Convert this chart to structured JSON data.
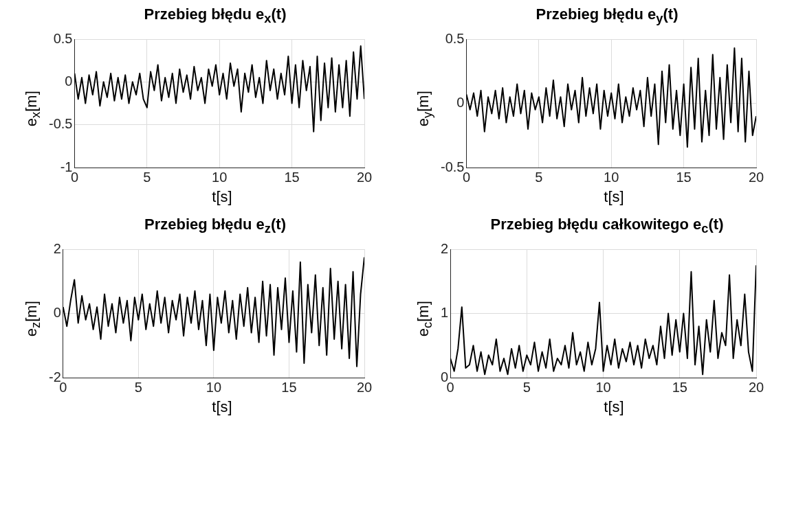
{
  "chart_data": [
    {
      "type": "line",
      "title": "Przebieg błędu e$_{x}$(t)",
      "xlabel": "t[s]",
      "ylabel": "e$_{x}$[m]",
      "xlim": [
        0,
        20
      ],
      "xticks": [
        0,
        5,
        10,
        15,
        20
      ],
      "ylim": [
        -1,
        0.5
      ],
      "yticks": [
        -1,
        -0.5,
        0,
        0.5
      ],
      "grid": true,
      "x": [
        0,
        0.25,
        0.5,
        0.75,
        1,
        1.25,
        1.5,
        1.75,
        2,
        2.25,
        2.5,
        2.75,
        3,
        3.25,
        3.5,
        3.75,
        4,
        4.25,
        4.5,
        4.75,
        5,
        5.25,
        5.5,
        5.75,
        6,
        6.25,
        6.5,
        6.75,
        7,
        7.25,
        7.5,
        7.75,
        8,
        8.25,
        8.5,
        8.75,
        9,
        9.25,
        9.5,
        9.75,
        10,
        10.25,
        10.5,
        10.75,
        11,
        11.25,
        11.5,
        11.75,
        12,
        12.25,
        12.5,
        12.75,
        13,
        13.25,
        13.5,
        13.75,
        14,
        14.25,
        14.5,
        14.75,
        15,
        15.25,
        15.5,
        15.75,
        16,
        16.25,
        16.5,
        16.75,
        17,
        17.25,
        17.5,
        17.75,
        18,
        18.25,
        18.5,
        18.75,
        19,
        19.25,
        19.5,
        19.75,
        20
      ],
      "series": [
        {
          "color": "#000000",
          "values": [
            0.1,
            -0.2,
            0.05,
            -0.25,
            0.08,
            -0.15,
            0.12,
            -0.28,
            0.0,
            -0.18,
            0.1,
            -0.22,
            0.05,
            -0.2,
            0.08,
            -0.25,
            0.0,
            -0.15,
            0.1,
            -0.2,
            -0.3,
            0.12,
            -0.1,
            0.2,
            -0.22,
            0.05,
            -0.18,
            0.1,
            -0.25,
            0.15,
            -0.12,
            0.08,
            -0.2,
            0.18,
            -0.1,
            0.05,
            -0.25,
            0.15,
            -0.05,
            0.2,
            -0.15,
            0.1,
            -0.2,
            0.22,
            -0.05,
            0.15,
            -0.35,
            0.1,
            -0.12,
            0.2,
            -0.18,
            0.05,
            -0.25,
            0.25,
            -0.1,
            0.15,
            -0.2,
            0.1,
            -0.15,
            0.3,
            -0.25,
            0.2,
            -0.3,
            0.25,
            -0.1,
            0.18,
            -0.58,
            0.3,
            -0.45,
            0.22,
            -0.3,
            0.28,
            -0.35,
            0.2,
            -0.3,
            0.25,
            -0.4,
            0.35,
            -0.2,
            0.42,
            -0.2
          ]
        }
      ]
    },
    {
      "type": "line",
      "title": "Przebieg błędu e$_{y}$(t)",
      "xlabel": "t[s]",
      "ylabel": "e$_{y}$[m]",
      "xlim": [
        0,
        20
      ],
      "xticks": [
        0,
        5,
        10,
        15,
        20
      ],
      "ylim": [
        -0.5,
        0.5
      ],
      "yticks": [
        -0.5,
        0,
        0.5
      ],
      "grid": true,
      "x": [
        0,
        0.25,
        0.5,
        0.75,
        1,
        1.25,
        1.5,
        1.75,
        2,
        2.25,
        2.5,
        2.75,
        3,
        3.25,
        3.5,
        3.75,
        4,
        4.25,
        4.5,
        4.75,
        5,
        5.25,
        5.5,
        5.75,
        6,
        6.25,
        6.5,
        6.75,
        7,
        7.25,
        7.5,
        7.75,
        8,
        8.25,
        8.5,
        8.75,
        9,
        9.25,
        9.5,
        9.75,
        10,
        10.25,
        10.5,
        10.75,
        11,
        11.25,
        11.5,
        11.75,
        12,
        12.25,
        12.5,
        12.75,
        13,
        13.25,
        13.5,
        13.75,
        14,
        14.25,
        14.5,
        14.75,
        15,
        15.25,
        15.5,
        15.75,
        16,
        16.25,
        16.5,
        16.75,
        17,
        17.25,
        17.5,
        17.75,
        18,
        18.25,
        18.5,
        18.75,
        19,
        19.25,
        19.5,
        19.75,
        20
      ],
      "series": [
        {
          "color": "#000000",
          "values": [
            0.07,
            -0.05,
            0.08,
            -0.1,
            0.1,
            -0.22,
            0.05,
            -0.08,
            0.1,
            -0.12,
            0.12,
            -0.15,
            0.05,
            -0.1,
            0.15,
            -0.08,
            0.1,
            -0.2,
            0.08,
            -0.05,
            0.05,
            -0.15,
            0.12,
            -0.1,
            0.18,
            -0.12,
            0.05,
            -0.18,
            0.15,
            -0.05,
            0.1,
            -0.15,
            0.2,
            -0.1,
            0.12,
            -0.08,
            0.15,
            -0.2,
            0.1,
            -0.1,
            0.08,
            -0.12,
            0.15,
            -0.15,
            0.05,
            -0.1,
            0.12,
            -0.05,
            0.1,
            -0.18,
            0.2,
            -0.1,
            0.15,
            -0.32,
            0.25,
            -0.15,
            0.3,
            -0.2,
            0.1,
            -0.25,
            0.15,
            -0.34,
            0.28,
            -0.2,
            0.35,
            -0.3,
            0.1,
            -0.25,
            0.38,
            -0.2,
            0.2,
            -0.28,
            0.3,
            -0.15,
            0.43,
            -0.22,
            0.35,
            -0.3,
            0.25,
            -0.25,
            -0.1
          ]
        }
      ]
    },
    {
      "type": "line",
      "title": "Przebieg błędu e$_{z}$(t)",
      "xlabel": "t[s]",
      "ylabel": "e$_{z}$[m]",
      "xlim": [
        0,
        20
      ],
      "xticks": [
        0,
        5,
        10,
        15,
        20
      ],
      "ylim": [
        -2,
        2
      ],
      "yticks": [
        -2,
        0,
        2
      ],
      "grid": true,
      "x": [
        0,
        0.25,
        0.5,
        0.75,
        1,
        1.25,
        1.5,
        1.75,
        2,
        2.25,
        2.5,
        2.75,
        3,
        3.25,
        3.5,
        3.75,
        4,
        4.25,
        4.5,
        4.75,
        5,
        5.25,
        5.5,
        5.75,
        6,
        6.25,
        6.5,
        6.75,
        7,
        7.25,
        7.5,
        7.75,
        8,
        8.25,
        8.5,
        8.75,
        9,
        9.25,
        9.5,
        9.75,
        10,
        10.25,
        10.5,
        10.75,
        11,
        11.25,
        11.5,
        11.75,
        12,
        12.25,
        12.5,
        12.75,
        13,
        13.25,
        13.5,
        13.75,
        14,
        14.25,
        14.5,
        14.75,
        15,
        15.25,
        15.5,
        15.75,
        16,
        16.25,
        16.5,
        16.75,
        17,
        17.25,
        17.5,
        17.75,
        18,
        18.25,
        18.5,
        18.75,
        19,
        19.25,
        19.5,
        19.75,
        20
      ],
      "series": [
        {
          "color": "#000000",
          "values": [
            0.2,
            -0.4,
            0.4,
            1.05,
            -0.3,
            0.55,
            -0.2,
            0.3,
            -0.5,
            0.2,
            -0.8,
            0.6,
            -0.4,
            0.3,
            -0.6,
            0.5,
            -0.3,
            0.4,
            -0.85,
            0.5,
            -0.2,
            0.6,
            -0.5,
            0.3,
            -0.4,
            0.7,
            -0.3,
            0.5,
            -0.6,
            0.4,
            -0.2,
            0.6,
            -0.7,
            0.5,
            -0.3,
            0.7,
            -0.5,
            0.4,
            -1.0,
            0.6,
            -1.15,
            0.5,
            -0.3,
            0.7,
            -0.6,
            0.4,
            -0.8,
            0.6,
            -0.4,
            0.8,
            -0.6,
            0.5,
            -0.9,
            1.0,
            -0.7,
            0.9,
            -1.3,
            0.8,
            -0.5,
            1.1,
            -0.9,
            0.7,
            -1.2,
            1.6,
            -1.55,
            0.9,
            -0.6,
            1.2,
            -1.0,
            0.8,
            -1.3,
            1.4,
            -0.8,
            1.0,
            -1.1,
            0.9,
            -1.4,
            1.3,
            -1.65,
            0.6,
            1.75
          ]
        }
      ]
    },
    {
      "type": "line",
      "title": "Przebieg błędu całkowitego e$_{c}$(t)",
      "xlabel": "t[s]",
      "ylabel": "e$_{c}$[m]",
      "xlim": [
        0,
        20
      ],
      "xticks": [
        0,
        5,
        10,
        15,
        20
      ],
      "ylim": [
        0,
        2
      ],
      "yticks": [
        0,
        1,
        2
      ],
      "grid": true,
      "x": [
        0,
        0.25,
        0.5,
        0.75,
        1,
        1.25,
        1.5,
        1.75,
        2,
        2.25,
        2.5,
        2.75,
        3,
        3.25,
        3.5,
        3.75,
        4,
        4.25,
        4.5,
        4.75,
        5,
        5.25,
        5.5,
        5.75,
        6,
        6.25,
        6.5,
        6.75,
        7,
        7.25,
        7.5,
        7.75,
        8,
        8.25,
        8.5,
        8.75,
        9,
        9.25,
        9.5,
        9.75,
        10,
        10.25,
        10.5,
        10.75,
        11,
        11.25,
        11.5,
        11.75,
        12,
        12.25,
        12.5,
        12.75,
        13,
        13.25,
        13.5,
        13.75,
        14,
        14.25,
        14.5,
        14.75,
        15,
        15.25,
        15.5,
        15.75,
        16,
        16.25,
        16.5,
        16.75,
        17,
        17.25,
        17.5,
        17.75,
        18,
        18.25,
        18.5,
        18.75,
        19,
        19.25,
        19.5,
        19.75,
        20
      ],
      "series": [
        {
          "color": "#000000",
          "values": [
            0.3,
            0.1,
            0.45,
            1.1,
            0.15,
            0.2,
            0.5,
            0.1,
            0.4,
            0.05,
            0.35,
            0.2,
            0.6,
            0.1,
            0.3,
            0.05,
            0.45,
            0.15,
            0.5,
            0.1,
            0.35,
            0.2,
            0.55,
            0.1,
            0.4,
            0.15,
            0.6,
            0.1,
            0.3,
            0.2,
            0.5,
            0.15,
            0.7,
            0.2,
            0.4,
            0.1,
            0.55,
            0.2,
            0.45,
            1.17,
            0.1,
            0.5,
            0.2,
            0.6,
            0.15,
            0.45,
            0.25,
            0.55,
            0.2,
            0.5,
            0.15,
            0.6,
            0.3,
            0.5,
            0.2,
            0.8,
            0.3,
            1.0,
            0.35,
            0.9,
            0.4,
            1.0,
            0.3,
            1.65,
            0.2,
            0.8,
            0.05,
            0.9,
            0.4,
            1.2,
            0.3,
            0.7,
            0.5,
            1.6,
            0.3,
            0.9,
            0.5,
            1.3,
            0.4,
            0.1,
            1.75
          ]
        }
      ]
    }
  ]
}
